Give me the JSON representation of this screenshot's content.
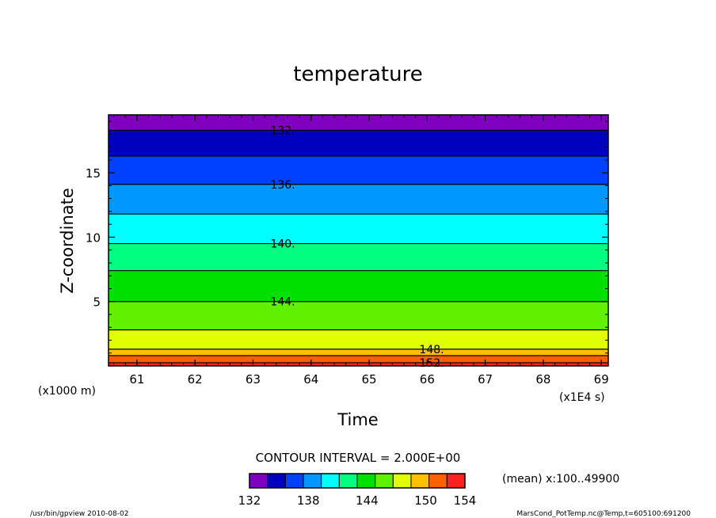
{
  "chart_data": {
    "type": "heatmap",
    "title": "temperature",
    "xlabel": "Time",
    "ylabel": "Z-coordinate",
    "x_units_label": "(x1E4 s)",
    "y_units_label": "(x1000 m)",
    "xlim": [
      60.51,
      69.12
    ],
    "ylim": [
      0,
      19.5
    ],
    "x_ticks": [
      61,
      62,
      63,
      64,
      65,
      66,
      67,
      68,
      69
    ],
    "y_ticks": [
      5,
      10,
      15
    ],
    "contour_interval_text": "CONTOUR INTERVAL = 2.000E+00",
    "mean_text": "(mean) x:100..49900",
    "footer_left": "/usr/bin/gpview   2010-08-02",
    "footer_right": "MarsCond_PotTemp.nc@Temp,t=605100:691200",
    "levels": [
      132,
      134,
      136,
      138,
      140,
      142,
      144,
      146,
      148,
      150,
      152,
      154
    ],
    "colors": [
      "#7f00bf",
      "#0000bf",
      "#0040ff",
      "#0098ff",
      "#00ffff",
      "#00ff80",
      "#00e000",
      "#60f000",
      "#e0ff00",
      "#ffc000",
      "#ff6000",
      "#ff2020"
    ],
    "band_boundaries_z": [
      19.5,
      18.3,
      16.3,
      14.1,
      11.8,
      9.5,
      7.4,
      5.0,
      2.8,
      1.3,
      0.8,
      0.25,
      0.0
    ],
    "contour_lines": [
      {
        "value": 132,
        "z": 18.3,
        "label": "132."
      },
      {
        "value": 134,
        "z": 16.3
      },
      {
        "value": 136,
        "z": 14.1,
        "label": "136."
      },
      {
        "value": 138,
        "z": 11.8
      },
      {
        "value": 140,
        "z": 9.5,
        "label": "140."
      },
      {
        "value": 142,
        "z": 7.4
      },
      {
        "value": 144,
        "z": 5.0,
        "label": "144."
      },
      {
        "value": 146,
        "z": 2.8
      },
      {
        "value": 148,
        "z": 1.3,
        "label": "148."
      },
      {
        "value": 150,
        "z": 0.8
      },
      {
        "value": 152,
        "z": 0.25,
        "label": "152."
      }
    ],
    "colorbar_labels": [
      "132",
      "138",
      "144",
      "150",
      "154"
    ]
  }
}
